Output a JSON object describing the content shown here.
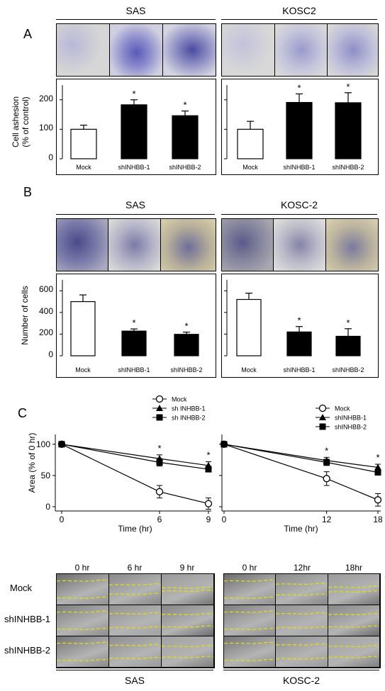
{
  "panels": {
    "A": {
      "letter": "A",
      "groups": [
        {
          "cell_line": "SAS"
        },
        {
          "cell_line": "KOSC2"
        }
      ],
      "ylabel_line1": "Cell ashesion",
      "ylabel_line2": "(% of control)"
    },
    "B": {
      "letter": "B",
      "groups": [
        {
          "cell_line": "SAS"
        },
        {
          "cell_line": "KOSC-2"
        }
      ],
      "ylabel": "Number  of  cells"
    },
    "C": {
      "letter": "C",
      "ylabel": "Area (% of 0 hr)",
      "xlabel": "Time (hr)",
      "left_legend": [
        "Mock",
        "sh INHBB-1",
        "sh INHBB-2"
      ],
      "right_legend": [
        "Mock",
        "shINHBB-1",
        "shINHBB-2"
      ],
      "scratch": {
        "left_cols": [
          "0 hr",
          "6 hr",
          "9 hr"
        ],
        "right_cols": [
          "0 hr",
          "12hr",
          "18hr"
        ],
        "rows": [
          "Mock",
          "shINHBB-1",
          "shINHBB-2"
        ],
        "bottom_labels": [
          "SAS",
          "KOSC-2"
        ]
      }
    }
  },
  "colors": {
    "mock_bar": "#ffffff",
    "sh_bar": "#000000",
    "scratch_line": "#e8e000",
    "stain": "#3a3aa8"
  },
  "chart_data": [
    {
      "type": "bar",
      "panel": "A",
      "group": "SAS",
      "categories": [
        "Mock",
        "shINHBB-1",
        "shINHBB-2"
      ],
      "values": [
        100,
        183,
        146
      ],
      "errors": [
        14,
        17,
        16
      ],
      "significant": [
        false,
        true,
        true
      ],
      "ylim": [
        0,
        250
      ],
      "yticks": [
        0,
        100,
        200
      ],
      "ylabel": "Cell ashesion (% of control)"
    },
    {
      "type": "bar",
      "panel": "A",
      "group": "KOSC2",
      "categories": [
        "Mock",
        "shINHBB-1",
        "shINHBB-2"
      ],
      "values": [
        100,
        191,
        190
      ],
      "errors": [
        27,
        29,
        34
      ],
      "significant": [
        false,
        true,
        true
      ],
      "ylim": [
        0,
        250
      ],
      "yticks": [
        0,
        100,
        200
      ]
    },
    {
      "type": "bar",
      "panel": "B",
      "group": "SAS",
      "categories": [
        "Mock",
        "shINHBB-1",
        "shINHBB-2"
      ],
      "values": [
        500,
        228,
        198
      ],
      "errors": [
        62,
        20,
        20
      ],
      "significant": [
        false,
        true,
        true
      ],
      "ylim": [
        0,
        700
      ],
      "yticks": [
        0,
        200,
        400,
        600
      ],
      "ylabel": "Number  of  cells"
    },
    {
      "type": "bar",
      "panel": "B",
      "group": "KOSC-2",
      "categories": [
        "Mock",
        "shINHBB-1",
        "shINHBB-2"
      ],
      "values": [
        520,
        220,
        180
      ],
      "errors": [
        58,
        50,
        70
      ],
      "significant": [
        false,
        true,
        true
      ],
      "ylim": [
        0,
        700
      ],
      "yticks": [
        0,
        200,
        400,
        600
      ]
    },
    {
      "type": "line",
      "panel": "C",
      "group": "SAS",
      "x": [
        0,
        6,
        9
      ],
      "xticks": [
        0,
        6,
        9
      ],
      "series": [
        {
          "name": "Mock",
          "values": [
            100,
            24,
            5
          ],
          "errors": [
            0,
            10,
            9
          ],
          "marker": "open-circle"
        },
        {
          "name": "sh INHBB-1",
          "values": [
            100,
            77,
            66
          ],
          "errors": [
            0,
            6,
            6
          ],
          "marker": "triangle"
        },
        {
          "name": "sh INHBB-2",
          "values": [
            100,
            71,
            60
          ],
          "errors": [
            0,
            6,
            3
          ],
          "marker": "square"
        }
      ],
      "significant_x": [
        6,
        9
      ],
      "ylim": [
        0,
        110
      ],
      "yticks": [
        0,
        50,
        100
      ],
      "ylabel": "Area (% of 0 hr)",
      "xlabel": "Time (hr)"
    },
    {
      "type": "line",
      "panel": "C",
      "group": "KOSC-2",
      "x": [
        0,
        12,
        18
      ],
      "xticks": [
        0,
        12,
        18
      ],
      "series": [
        {
          "name": "Mock",
          "values": [
            100,
            45,
            11
          ],
          "errors": [
            0,
            11,
            10
          ],
          "marker": "open-circle"
        },
        {
          "name": "shINHBB-1",
          "values": [
            100,
            74,
            63
          ],
          "errors": [
            0,
            5,
            5
          ],
          "marker": "triangle"
        },
        {
          "name": "shINHBB-2",
          "values": [
            100,
            71,
            55
          ],
          "errors": [
            0,
            5,
            4
          ],
          "marker": "square"
        }
      ],
      "significant_x": [
        12,
        18
      ],
      "ylim": [
        0,
        110
      ],
      "yticks": [
        0,
        50,
        100
      ],
      "xlabel": "Time (hr)"
    }
  ]
}
